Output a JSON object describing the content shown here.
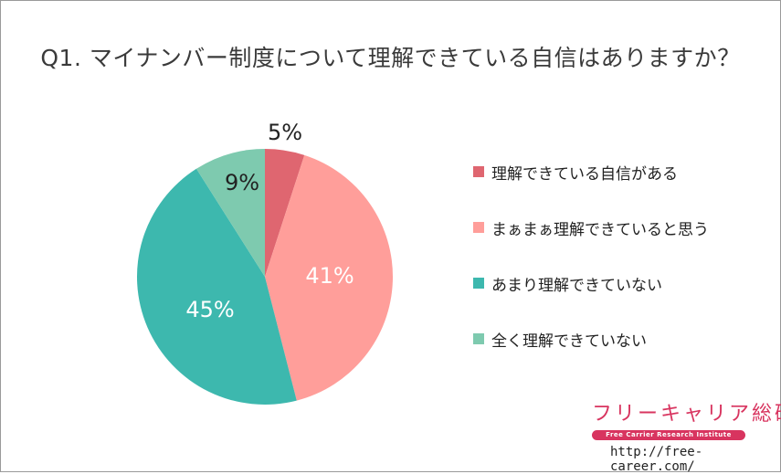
{
  "title": "Q1. マイナンバー制度について理解できている自信はありますか？",
  "chart_data": {
    "type": "pie",
    "title": "Q1. マイナンバー制度について理解できている自信はありますか？",
    "categories": [
      "理解できている自信がある",
      "まぁまぁ理解できていると思う",
      "あまり理解できていない",
      "全く理解できていない"
    ],
    "values": [
      5,
      41,
      45,
      9
    ],
    "labels": [
      "5%",
      "41%",
      "45%",
      "9%"
    ],
    "colors": [
      "#df6670",
      "#ff9e9a",
      "#3db8ae",
      "#7ecaaf"
    ],
    "label_colors": [
      "#222222",
      "#ffffff",
      "#ffffff",
      "#222222"
    ],
    "legend_position": "right"
  },
  "legend": [
    {
      "label": "理解できている自信がある",
      "color": "#df6670"
    },
    {
      "label": "まぁまぁ理解できていると思う",
      "color": "#ff9e9a"
    },
    {
      "label": "あまり理解できていない",
      "color": "#3db8ae"
    },
    {
      "label": "全く理解できていない",
      "color": "#7ecaaf"
    }
  ],
  "brand": {
    "name": "フリーキャリア総研",
    "tagline": "Free Carrier Research Institute",
    "url": "http://free-career.com/"
  }
}
